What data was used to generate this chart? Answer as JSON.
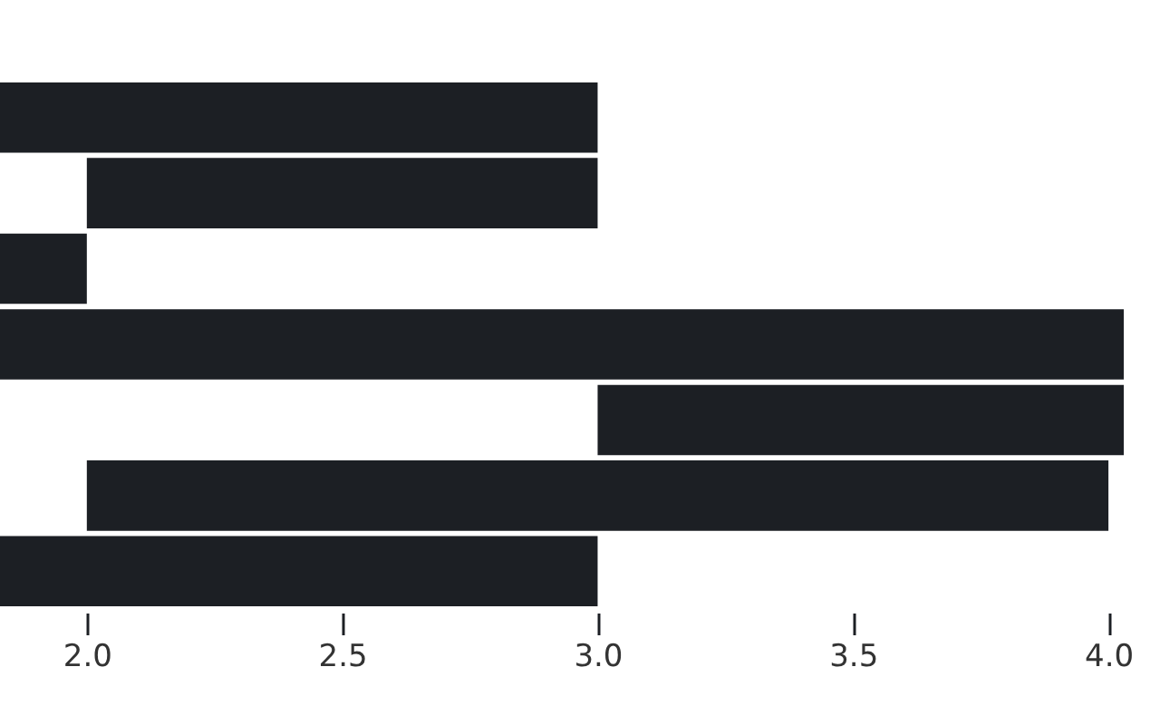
{
  "chart_data": {
    "type": "bar",
    "orientation": "horizontal",
    "categories": [
      null,
      null,
      null,
      null,
      null,
      null,
      null
    ],
    "values": [
      1.17,
      1,
      0.17,
      2.2,
      1.03,
      2,
      1.17
    ],
    "base": [
      1.83,
      2,
      1.83,
      1.83,
      3,
      2,
      1.83
    ],
    "color": "#1c1f24",
    "xlim": [
      1.83,
      4.03
    ],
    "xticks": [
      {
        "value": 2,
        "label": "2.0"
      },
      {
        "value": 2.5,
        "label": "2.5"
      },
      {
        "value": 3,
        "label": "3.0"
      },
      {
        "value": 3.5,
        "label": "3.5"
      },
      {
        "value": 4,
        "label": "4.0"
      }
    ],
    "tick_labels": "x",
    "grid": false
  }
}
